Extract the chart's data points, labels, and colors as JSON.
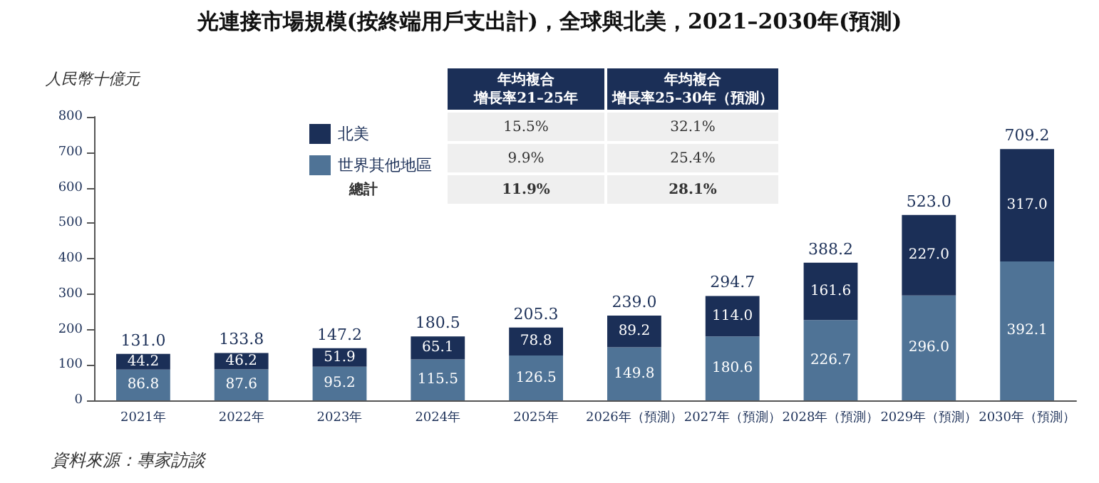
{
  "chart_data": {
    "type": "bar",
    "stacked": true,
    "title": "光連接市場規模(按終端用戶支出計)，全球與北美，2021–2030年(預測)",
    "ylabel": "人民幣十億元",
    "categories": [
      "2021年",
      "2022年",
      "2023年",
      "2024年",
      "2025年",
      "2026年（預測）",
      "2027年（預測）",
      "2028年（預測）",
      "2029年（預測）",
      "2030年（預測）"
    ],
    "series": [
      {
        "name": "世界其他地區",
        "color": "#4f7396",
        "values": [
          86.8,
          87.6,
          95.2,
          115.5,
          126.5,
          149.8,
          180.6,
          226.7,
          296.0,
          392.1
        ],
        "value_labels": [
          "86.8",
          "87.6",
          "95.2",
          "115.5",
          "126.5",
          "149.8",
          "180.6",
          "226.7",
          "296.0",
          "392.1"
        ]
      },
      {
        "name": "北美",
        "color": "#1b2f57",
        "values": [
          44.2,
          46.2,
          51.9,
          65.1,
          78.8,
          89.2,
          114.0,
          161.6,
          227.0,
          317.0
        ],
        "value_labels": [
          "44.2",
          "46.2",
          "51.9",
          "65.1",
          "78.8",
          "89.2",
          "114.0",
          "161.6",
          "227.0",
          "317.0"
        ]
      }
    ],
    "totals": [
      "131.0",
      "133.8",
      "147.2",
      "180.5",
      "205.3",
      "239.0",
      "294.7",
      "388.2",
      "523.0",
      "709.2"
    ],
    "ylim": [
      0,
      800
    ],
    "yticks": [
      0,
      100,
      200,
      300,
      400,
      500,
      600,
      700,
      800
    ],
    "grid": false,
    "legend": "top",
    "annotations": [
      "年均複合",
      "增長率21–25年",
      "年均複合",
      "增長率25–30年（預測）",
      "9.9%",
      "25.4%",
      "15.5%",
      "32.1%",
      "總計",
      "11.9%",
      "28.1%",
      "資料來源：專家訪談"
    ]
  }
}
